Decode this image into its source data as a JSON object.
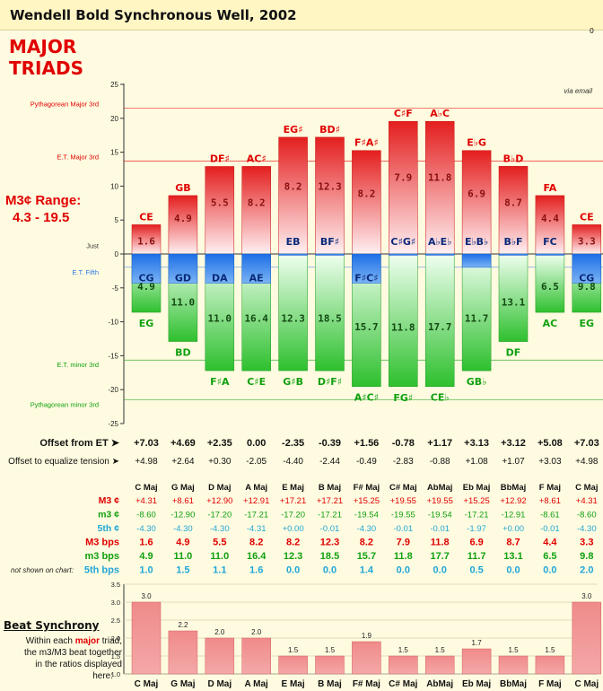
{
  "header": {
    "title": "Wendell Bold Synchronous Well, 2002",
    "corner_number": "0"
  },
  "heading": {
    "line1": "MAJOR",
    "line2": "TRIADS"
  },
  "range_label": {
    "line1": "M3¢ Range:",
    "line2": "4.3 - 19.5"
  },
  "colors": {
    "red": "#e41e1e",
    "green": "#2ec02e",
    "blue": "#2a7ae8",
    "cyan": "#20a6d8",
    "accent": "#e00000"
  },
  "chart_data": [
    {
      "type": "bar",
      "note": "via email",
      "ylim": [
        -25,
        25
      ],
      "yticks": [
        -25,
        -20,
        -15,
        -10,
        -5,
        0,
        5,
        10,
        15,
        20,
        25
      ],
      "reference_lines": [
        {
          "label": "Pythagorean Major 3rd",
          "value": 21.5,
          "side": "top"
        },
        {
          "label": "E.T. Major 3rd",
          "value": 13.69,
          "side": "top"
        },
        {
          "label": "Just",
          "value": 0.6,
          "side": "top"
        },
        {
          "label": "E.T. Fifth",
          "value": -1.96,
          "side": "bottom"
        },
        {
          "label": "E.T. minor 3rd",
          "value": -15.64,
          "side": "bottom"
        },
        {
          "label": "Pythagorean minor 3rd",
          "value": -21.5,
          "side": "bottom"
        }
      ],
      "categories": [
        "C Maj",
        "G Maj",
        "D Maj",
        "A Maj",
        "E Maj",
        "B Maj",
        "F# Maj",
        "C# Maj",
        "AbMaj",
        "Eb Maj",
        "BbMaj",
        "F Maj",
        "C Maj"
      ],
      "series": [
        {
          "key": "m3",
          "values": [
            4.31,
            8.61,
            12.9,
            12.91,
            17.21,
            17.21,
            15.25,
            19.55,
            19.55,
            15.25,
            12.92,
            8.61,
            4.31
          ],
          "top_labels": [
            "CE",
            "GB",
            "DF♯",
            "AC♯",
            "EG♯",
            "BD♯",
            "F♯A♯",
            "C♯F",
            "A♭C",
            "E♭G",
            "B♭D",
            "FA",
            "CE"
          ],
          "bps_labels": [
            "1.6",
            "4.9",
            "5.5",
            "8.2",
            "8.2",
            "12.3",
            "8.2",
            "7.9",
            "11.8",
            "6.9",
            "8.7",
            "4.4",
            "3.3"
          ]
        },
        {
          "key": "fifth",
          "values": [
            -4.3,
            -4.3,
            -4.3,
            -4.31,
            0.0,
            -0.01,
            -4.3,
            -0.01,
            -0.01,
            -1.97,
            0.0,
            -0.01,
            -4.3
          ],
          "labels": [
            "CG",
            "GD",
            "DA",
            "AE",
            "EB",
            "BF♯",
            "F♯C♯",
            "C♯G♯",
            "A♭E♭",
            "E♭B♭",
            "B♭F",
            "FC",
            "CG"
          ]
        },
        {
          "key": "m3minor",
          "values": [
            -8.6,
            -12.9,
            -17.2,
            -17.21,
            -17.2,
            -17.21,
            -19.54,
            -19.55,
            -19.54,
            -17.21,
            -12.91,
            -8.61,
            -8.6
          ],
          "bottom_labels": [
            "EG",
            "BD",
            "F♯A",
            "C♯E",
            "G♯B",
            "D♯F♯",
            "A♯C♯",
            "FG♯",
            "CE♭",
            "GB♭",
            "DF",
            "AC",
            "EG"
          ],
          "bps_labels": [
            "4.9",
            "11.0",
            "11.0",
            "16.4",
            "12.3",
            "18.5",
            "15.7",
            "11.8",
            "17.7",
            "11.7",
            "13.1",
            "6.5",
            "9.8"
          ]
        }
      ]
    },
    {
      "type": "bar",
      "ylim": [
        1.0,
        3.5
      ],
      "yticks": [
        "1.0",
        "1.5",
        "2.0",
        "2.5",
        "3.0",
        "3.5"
      ],
      "categories": [
        "C Maj",
        "G Maj",
        "D Maj",
        "A Maj",
        "E Maj",
        "B Maj",
        "F# Maj",
        "C# Maj",
        "AbMaj",
        "Eb Maj",
        "BbMaj",
        "F Maj",
        "C Maj"
      ],
      "values": [
        3.0,
        2.2,
        2.0,
        2.0,
        1.5,
        1.5,
        1.9,
        1.5,
        1.5,
        1.7,
        1.5,
        1.5,
        3.0
      ],
      "value_labels": [
        "3.0",
        "2.2",
        "2.0",
        "2.0",
        "1.5",
        "1.5",
        "1.9",
        "1.5",
        "1.5",
        "1.7",
        "1.5",
        "1.5",
        "3.0"
      ]
    }
  ],
  "offsets": {
    "et_label": "Offset from ET ➤",
    "et": [
      "+7.03",
      "+4.69",
      "+2.35",
      "0.00",
      "-2.35",
      "-0.39",
      "+1.56",
      "-0.78",
      "+1.17",
      "+3.13",
      "+3.12",
      "+5.08",
      "+7.03"
    ],
    "eq_label": "Offset to equalize tension ➤",
    "eq": [
      "+4.98",
      "+2.64",
      "+0.30",
      "-2.05",
      "-4.40",
      "-2.44",
      "-0.49",
      "-2.83",
      "-0.88",
      "+1.08",
      "+1.07",
      "+3.03",
      "+4.98"
    ]
  },
  "table": {
    "headers": [
      "C Maj",
      "G Maj",
      "D Maj",
      "A Maj",
      "E Maj",
      "B Maj",
      "F# Maj",
      "C# Maj",
      "AbMaj",
      "Eb Maj",
      "BbMaj",
      "F Maj",
      "C Maj"
    ],
    "not_shown": "not shown on chart:",
    "rows": [
      {
        "label": "M3 ¢",
        "color": "#e00000",
        "big": false,
        "values": [
          "+4.31",
          "+8.61",
          "+12.90",
          "+12.91",
          "+17.21",
          "+17.21",
          "+15.25",
          "+19.55",
          "+19.55",
          "+15.25",
          "+12.92",
          "+8.61",
          "+4.31"
        ]
      },
      {
        "label": "m3 ¢",
        "color": "#10a010",
        "big": false,
        "values": [
          "-8.60",
          "-12.90",
          "-17.20",
          "-17.21",
          "-17.20",
          "-17.21",
          "-19.54",
          "-19.55",
          "-19.54",
          "-17.21",
          "-12.91",
          "-8.61",
          "-8.60"
        ]
      },
      {
        "label": "5th ¢",
        "color": "#20a6d8",
        "big": false,
        "values": [
          "-4.30",
          "-4.30",
          "-4.30",
          "-4.31",
          "+0.00",
          "-0.01",
          "-4.30",
          "-0.01",
          "-0.01",
          "-1.97",
          "+0.00",
          "-0.01",
          "-4.30"
        ]
      },
      {
        "label": "M3 bps",
        "color": "#e00000",
        "big": true,
        "values": [
          "1.6",
          "4.9",
          "5.5",
          "8.2",
          "8.2",
          "12.3",
          "8.2",
          "7.9",
          "11.8",
          "6.9",
          "8.7",
          "4.4",
          "3.3"
        ]
      },
      {
        "label": "m3 bps",
        "color": "#10a010",
        "big": true,
        "values": [
          "4.9",
          "11.0",
          "11.0",
          "16.4",
          "12.3",
          "18.5",
          "15.7",
          "11.8",
          "17.7",
          "11.7",
          "13.1",
          "6.5",
          "9.8"
        ]
      },
      {
        "label": "5th bps",
        "color": "#20a6d8",
        "big": true,
        "values": [
          "1.0",
          "1.5",
          "1.1",
          "1.6",
          "0.0",
          "0.0",
          "1.4",
          "0.0",
          "0.0",
          "0.5",
          "0.0",
          "0.0",
          "2.0"
        ]
      }
    ]
  },
  "beat_sync": {
    "title": "Beat Synchrony",
    "l1": "Within each",
    "hi": "major",
    "l1b": "triad,",
    "l2": "the m3/M3 beat together",
    "l3": "in the ratios displayed",
    "l4": "here:"
  }
}
